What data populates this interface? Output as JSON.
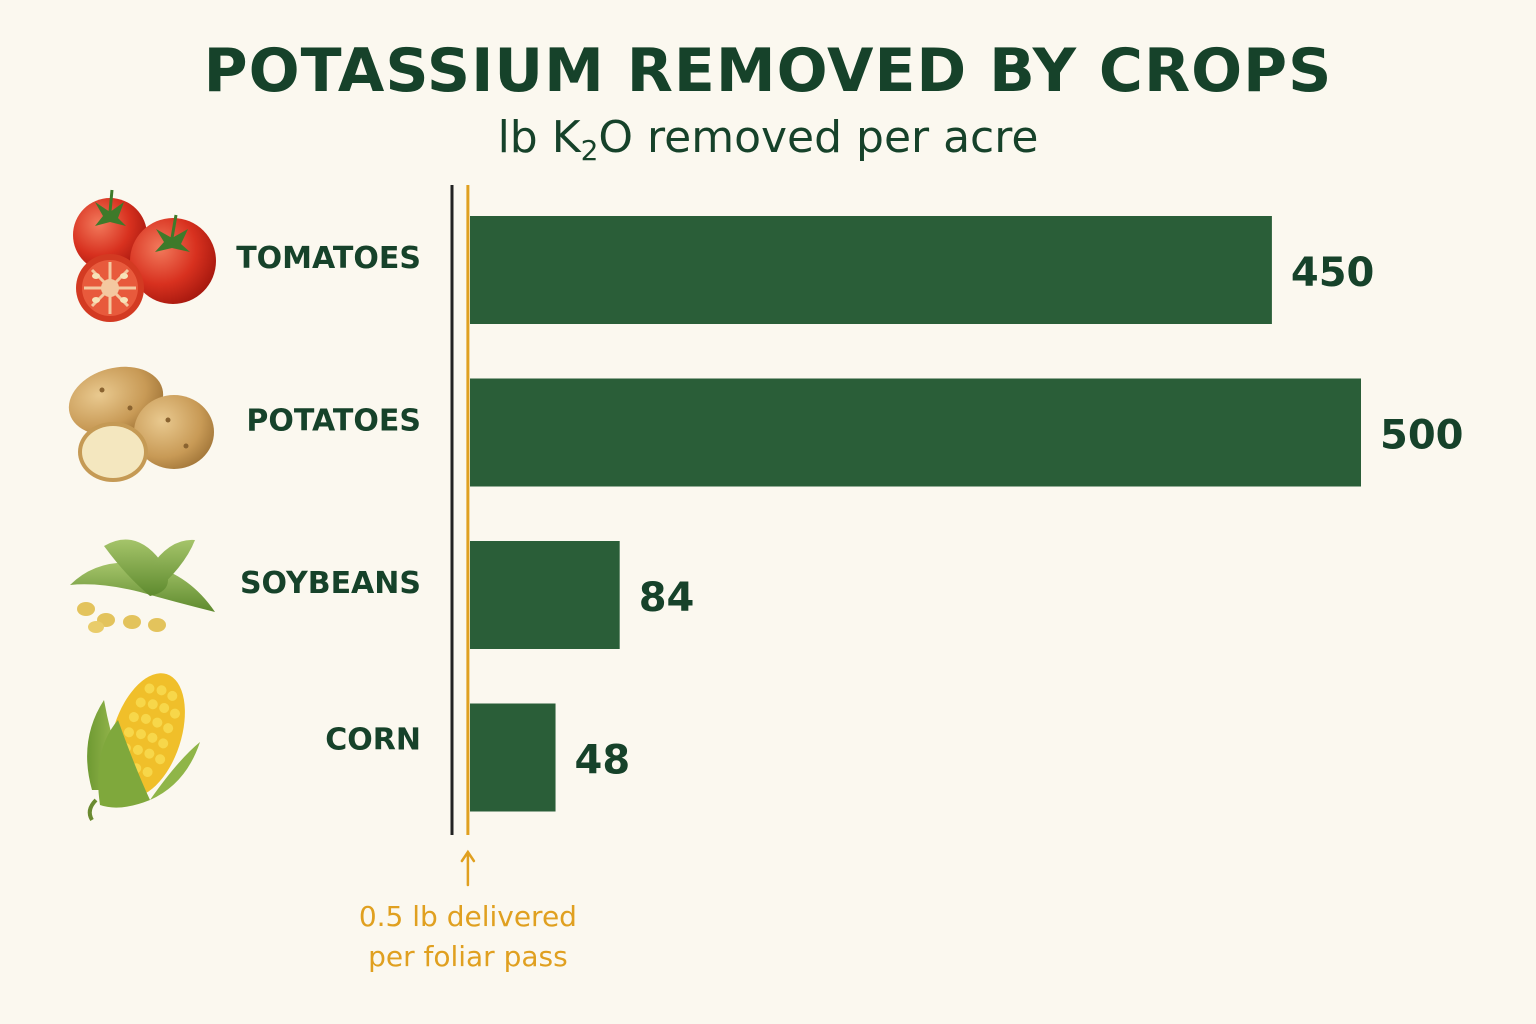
{
  "chart_data": {
    "type": "bar",
    "orientation": "horizontal",
    "title": "POTASSIUM REMOVED BY CROPS",
    "subtitle": {
      "before": "lb K",
      "subscript": "2",
      "after": "O removed per acre"
    },
    "categories": [
      "TOMATOES",
      "POTATOES",
      "SOYBEANS",
      "CORN"
    ],
    "values": [
      450,
      500,
      84,
      48
    ],
    "value_labels": [
      "450",
      "500",
      "84",
      "48"
    ],
    "category_icons": [
      "tomato-icon",
      "potato-icon",
      "soybean-icon",
      "corn-icon"
    ],
    "xlim": [
      0,
      500
    ],
    "grid": false,
    "legend": "none",
    "reference_line": {
      "value": 0.5,
      "label_lines": [
        "0.5 lb delivered",
        "per foliar pass"
      ]
    },
    "colors": {
      "bar": "#2a5e38",
      "text": "#16422a",
      "reference": "#e0a020",
      "axis": "#222222",
      "background": "#fbf8ef"
    }
  }
}
